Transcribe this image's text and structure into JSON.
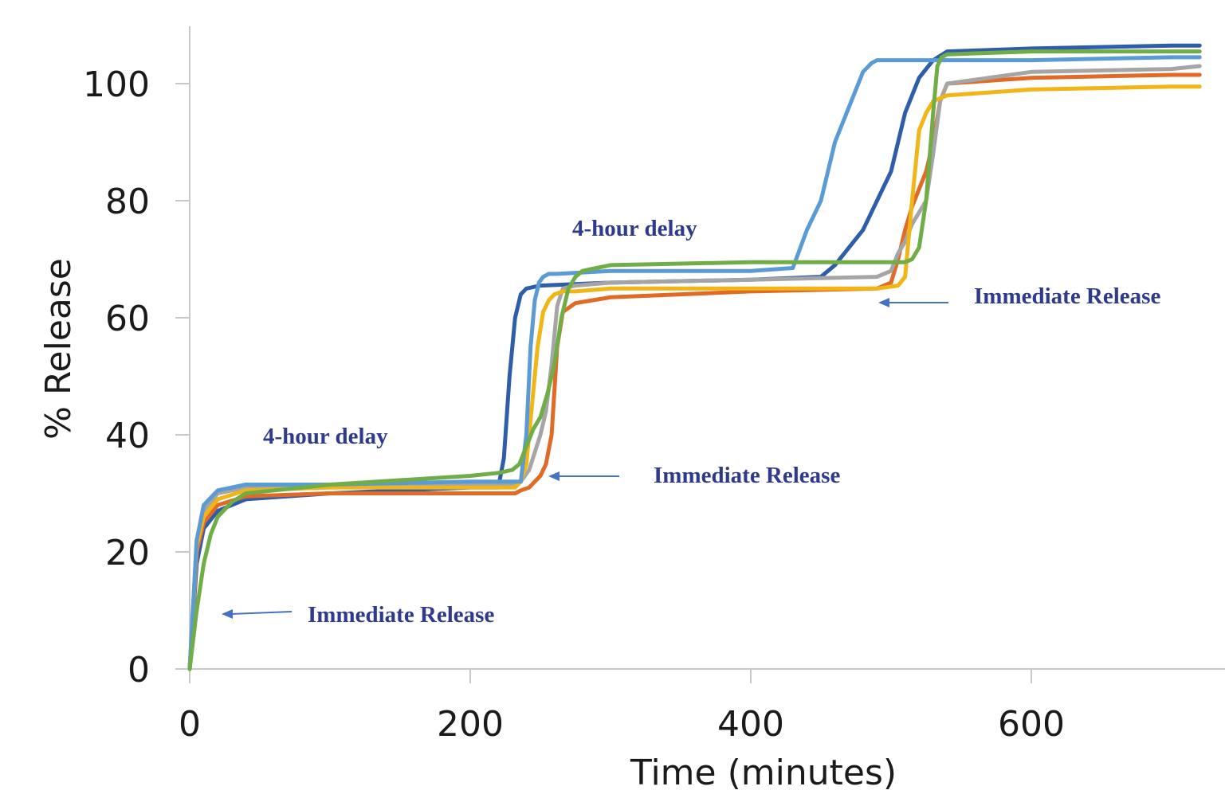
{
  "chart_data": {
    "type": "line",
    "title": "",
    "xlabel": "Time (minutes)",
    "ylabel": "% Release",
    "xlim": [
      0,
      735
    ],
    "ylim": [
      0,
      110
    ],
    "xticks": [
      0,
      200,
      400,
      600
    ],
    "yticks": [
      0,
      20,
      40,
      60,
      80,
      100
    ],
    "grid": false,
    "legend": "none",
    "series": [
      {
        "color": "#2e5daa",
        "x": [
          0,
          5,
          10,
          20,
          40,
          100,
          200,
          220,
          224,
          228,
          232,
          236,
          240,
          250,
          300,
          400,
          450,
          460,
          470,
          480,
          490,
          500,
          505,
          510,
          515,
          520,
          530,
          540,
          600,
          700,
          720
        ],
        "y": [
          0,
          18,
          24,
          27,
          29,
          30,
          31,
          31,
          36,
          50,
          60,
          64,
          65,
          65.5,
          66,
          66.5,
          67,
          69,
          72,
          75,
          80,
          85,
          90,
          95,
          98,
          101,
          104,
          105.5,
          106,
          106.5,
          106.5
        ]
      },
      {
        "color": "#e06a26",
        "x": [
          0,
          5,
          10,
          20,
          40,
          100,
          200,
          232,
          236,
          242,
          246,
          250,
          254,
          258,
          262,
          266,
          275,
          300,
          400,
          490,
          500,
          505,
          510,
          515,
          520,
          525,
          530,
          535,
          540,
          600,
          700,
          720
        ],
        "y": [
          0,
          20,
          25,
          28,
          29.5,
          30,
          30,
          30,
          30.5,
          31,
          32,
          33,
          35,
          40,
          55,
          61,
          62.5,
          63.5,
          64.5,
          65,
          66,
          70,
          75,
          79,
          82,
          85,
          90,
          97,
          100,
          101,
          101.5,
          101.5
        ]
      },
      {
        "color": "#a5a5a5",
        "x": [
          0,
          5,
          10,
          20,
          40,
          100,
          200,
          230,
          236,
          242,
          246,
          250,
          254,
          258,
          262,
          266,
          275,
          300,
          400,
          490,
          500,
          505,
          510,
          515,
          520,
          525,
          530,
          535,
          540,
          600,
          700,
          720
        ],
        "y": [
          0,
          22,
          27,
          30,
          31,
          31.5,
          31.5,
          31.5,
          32,
          34,
          37,
          40,
          44,
          52,
          62,
          65,
          65.5,
          66,
          66.5,
          67,
          68,
          71,
          73,
          76,
          78,
          80,
          88,
          97,
          100,
          102,
          102.5,
          103
        ]
      },
      {
        "color": "#f2b517",
        "x": [
          0,
          5,
          10,
          20,
          40,
          100,
          200,
          232,
          236,
          240,
          244,
          248,
          252,
          256,
          260,
          266,
          275,
          300,
          400,
          490,
          505,
          510,
          515,
          520,
          525,
          530,
          535,
          540,
          600,
          700,
          720
        ],
        "y": [
          0,
          21,
          26,
          29,
          30.5,
          31,
          31,
          31,
          32,
          35,
          45,
          55,
          61,
          63,
          64,
          64.5,
          64.5,
          65,
          65,
          65,
          65.5,
          67,
          80,
          92,
          95,
          97,
          97.5,
          98,
          99,
          99.5,
          99.5
        ]
      },
      {
        "color": "#5b9bd5",
        "x": [
          0,
          5,
          10,
          20,
          40,
          100,
          200,
          236,
          240,
          243,
          246,
          249,
          252,
          256,
          262,
          300,
          400,
          430,
          440,
          450,
          460,
          470,
          480,
          486,
          490,
          500,
          540,
          600,
          700,
          720
        ],
        "y": [
          0,
          22,
          28,
          30.5,
          31.5,
          31.5,
          32,
          32,
          40,
          55,
          63,
          66,
          67,
          67.5,
          67.5,
          68,
          68,
          68.5,
          75,
          80,
          90,
          96,
          102,
          103.5,
          104,
          104,
          104,
          104,
          104.5,
          104.5
        ]
      },
      {
        "color": "#70ad47",
        "x": [
          0,
          5,
          10,
          15,
          20,
          30,
          40,
          100,
          200,
          220,
          230,
          235,
          240,
          245,
          250,
          255,
          260,
          265,
          270,
          275,
          280,
          290,
          300,
          400,
          500,
          510,
          515,
          520,
          525,
          530,
          533,
          536,
          540,
          600,
          700,
          720
        ],
        "y": [
          0,
          10,
          18,
          23,
          26,
          28.5,
          30,
          31.5,
          33,
          33.5,
          34,
          35,
          38,
          41,
          43,
          47,
          52,
          60,
          65,
          67,
          68,
          68.5,
          69,
          69.5,
          69.5,
          69.5,
          70,
          72,
          80,
          95,
          103,
          104.5,
          105,
          105.5,
          105.5,
          105.5
        ]
      }
    ],
    "annotations": [
      {
        "text": "4-hour delay"
      },
      {
        "text": "Immediate Release"
      },
      {
        "text": "4-hour delay"
      },
      {
        "text": "Immediate Release"
      },
      {
        "text": "Immediate Release"
      }
    ]
  }
}
